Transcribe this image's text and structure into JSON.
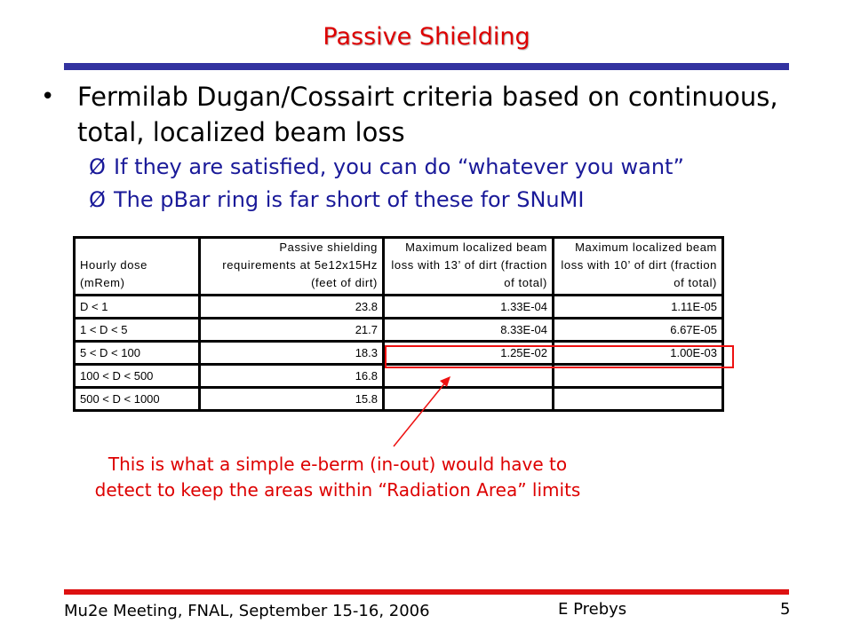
{
  "slide": {
    "title": "Passive Shielding",
    "bullet_mark": "•",
    "bullet": "Fermilab Dugan/Cossairt criteria based on continuous, total, localized beam loss",
    "sub_arrow": "Ø",
    "sub_bullets": [
      "If they are satisfied, you can do “whatever you want”",
      "The pBar ring is far short of these for SNuMI"
    ]
  },
  "table": {
    "headers": [
      "Hourly dose (mRem)",
      "Passive shielding requirements at 5e12x15Hz (feet of dirt)",
      "Maximum localized beam loss with 13’ of dirt (fraction of total)",
      "Maximum localized beam loss with 10’ of dirt (fraction of total)"
    ],
    "rows": [
      [
        "D < 1",
        "23.8",
        "1.33E-04",
        "1.11E-05"
      ],
      [
        "1 < D < 5",
        "21.7",
        "8.33E-04",
        "6.67E-05"
      ],
      [
        "5 < D < 100",
        "18.3",
        "1.25E-02",
        "1.00E-03"
      ],
      [
        "100 < D < 500",
        "16.8",
        "",
        ""
      ],
      [
        "500 < D < 1000",
        "15.8",
        "",
        ""
      ]
    ]
  },
  "callout": {
    "line1": "This is what a simple e-berm (in-out) would have to",
    "line2": "detect to keep the areas within “Radiation Area” limits"
  },
  "footer": {
    "meeting": "Mu2e Meeting, FNAL, September 15-16, 2006",
    "author": "E Prebys",
    "page": "5"
  },
  "colors": {
    "title": "#dd0000",
    "rule_top": "#3333a0",
    "sub_bullets": "#1a1a99",
    "highlight": "#ee1111",
    "rule_bottom": "#dd1111"
  }
}
